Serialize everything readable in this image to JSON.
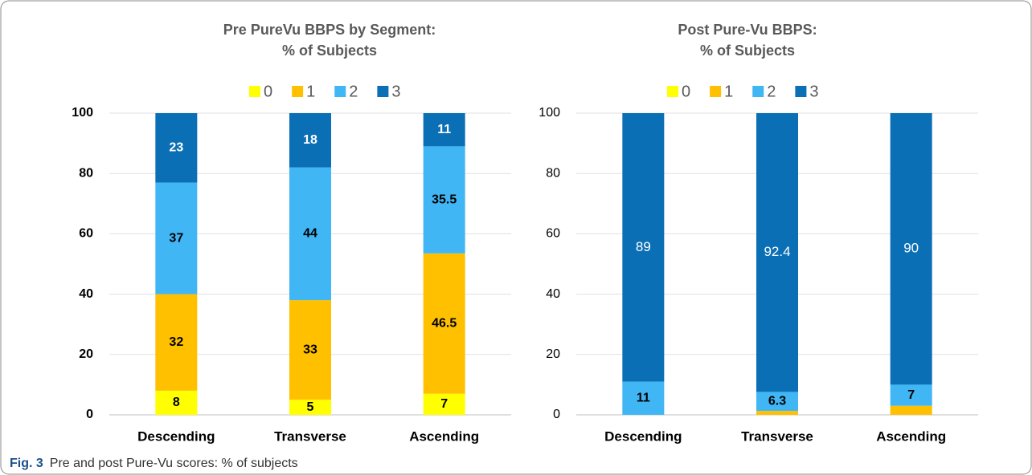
{
  "chart_data": [
    {
      "type": "stacked_bar",
      "title": "Pre PureVu BBPS by Segment:",
      "subtitle": "% of Subjects",
      "categories": [
        "Descending",
        "Transverse",
        "Ascending"
      ],
      "series": [
        {
          "name": "0",
          "color": "#ffff00",
          "values": [
            8,
            5,
            7
          ],
          "labels": true,
          "label_color": "#000000"
        },
        {
          "name": "1",
          "color": "#ffc000",
          "values": [
            32,
            33,
            46.5
          ],
          "labels": true,
          "label_color": "#000000"
        },
        {
          "name": "2",
          "color": "#41b6f5",
          "values": [
            37,
            44,
            35.5
          ],
          "labels": true,
          "label_color": "#000000"
        },
        {
          "name": "3",
          "color": "#0b6fb5",
          "values": [
            23,
            18,
            11
          ],
          "labels": true,
          "label_color": "#ffffff"
        }
      ],
      "ylim": [
        0,
        100
      ],
      "yticks": [
        0,
        20,
        40,
        60,
        80,
        100
      ],
      "grid": true,
      "legend": "top"
    },
    {
      "type": "stacked_bar",
      "title": "Post Pure-Vu BBPS:",
      "subtitle": "% of Subjects",
      "categories": [
        "Descending",
        "Transverse",
        "Ascending"
      ],
      "series": [
        {
          "name": "0",
          "color": "#ffff00",
          "values": [
            0,
            0,
            0
          ],
          "labels": false
        },
        {
          "name": "1",
          "color": "#ffc000",
          "values": [
            0,
            1.3,
            3
          ],
          "labels": false
        },
        {
          "name": "2",
          "color": "#41b6f5",
          "values": [
            11,
            6.3,
            7
          ],
          "labels": true,
          "label_color": "#000000"
        },
        {
          "name": "3",
          "color": "#0b6fb5",
          "values": [
            89,
            92.4,
            90
          ],
          "labels": true,
          "label_color": "#ffffff"
        }
      ],
      "ylim": [
        0,
        100
      ],
      "yticks": [
        0,
        20,
        40,
        60,
        80,
        100
      ],
      "grid": true,
      "legend": "top"
    }
  ],
  "caption": {
    "label": "Fig. 3",
    "text": "Pre and post Pure-Vu scores: % of subjects"
  }
}
